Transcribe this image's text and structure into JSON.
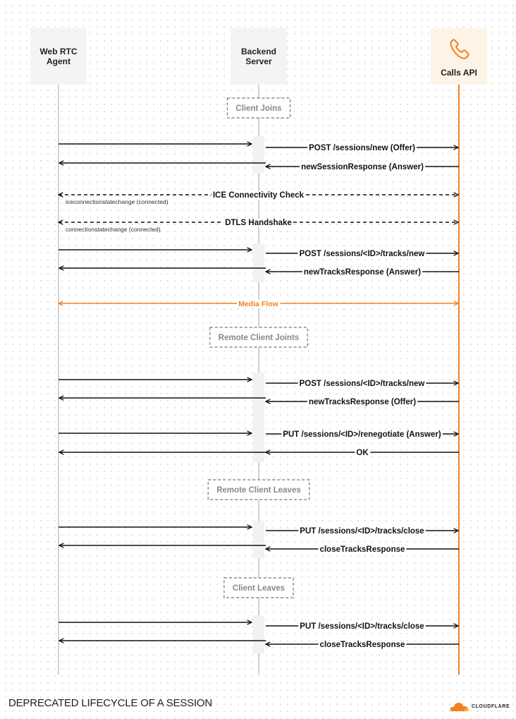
{
  "participants": [
    {
      "id": "agent",
      "label_lines": [
        "Web RTC",
        "Agent"
      ],
      "icon": null
    },
    {
      "id": "backend",
      "label_lines": [
        "Backend",
        "Server"
      ],
      "icon": null
    },
    {
      "id": "api",
      "label_lines": [
        "Calls API"
      ],
      "icon": "phone-icon"
    }
  ],
  "colors": {
    "accent": "#f38020",
    "lifeline": "#c4c4c4",
    "header_bg": "#f4f4f5",
    "api_header_bg": "#fdf3e6",
    "arrow": "#111111",
    "section_border": "#777777"
  },
  "sections": [
    "Client Joins",
    "Remote Client Joints",
    "Remote Client Leaves",
    "Client Leaves"
  ],
  "messages": [
    {
      "from": "agent",
      "to": "backend",
      "label": ""
    },
    {
      "from": "backend",
      "to": "api",
      "label": "POST /sessions/new (Offer)"
    },
    {
      "from": "backend",
      "to": "agent",
      "label": ""
    },
    {
      "from": "api",
      "to": "backend",
      "label": "newSessionResponse (Answer)"
    },
    {
      "from": "agent",
      "to": "api",
      "label": "ICE Connectivity Check",
      "style": "dashed",
      "bidirectional": true,
      "note": "iceconnectionstatechange (connected)"
    },
    {
      "from": "agent",
      "to": "api",
      "label": "DTLS Handshake",
      "style": "dashed",
      "bidirectional": true,
      "note": "connectionstatechange (connected)"
    },
    {
      "from": "agent",
      "to": "backend",
      "label": ""
    },
    {
      "from": "backend",
      "to": "api",
      "label": "POST /sessions/<ID>/tracks/new"
    },
    {
      "from": "backend",
      "to": "agent",
      "label": ""
    },
    {
      "from": "api",
      "to": "backend",
      "label": "newTracksResponse (Answer)"
    },
    {
      "from": "agent",
      "to": "api",
      "label": "Media Flow",
      "style": "accent",
      "bidirectional": true
    },
    {
      "from": "agent",
      "to": "backend",
      "label": ""
    },
    {
      "from": "backend",
      "to": "api",
      "label": "POST /sessions/<ID>/tracks/new"
    },
    {
      "from": "backend",
      "to": "agent",
      "label": ""
    },
    {
      "from": "api",
      "to": "backend",
      "label": "newTracksResponse (Offer)"
    },
    {
      "from": "agent",
      "to": "backend",
      "label": ""
    },
    {
      "from": "backend",
      "to": "api",
      "label": "PUT /sessions/<ID>/renegotiate (Answer)"
    },
    {
      "from": "backend",
      "to": "agent",
      "label": ""
    },
    {
      "from": "api",
      "to": "backend",
      "label": "OK"
    },
    {
      "from": "agent",
      "to": "backend",
      "label": ""
    },
    {
      "from": "backend",
      "to": "api",
      "label": "PUT /sessions/<ID>/tracks/close"
    },
    {
      "from": "backend",
      "to": "agent",
      "label": ""
    },
    {
      "from": "api",
      "to": "backend",
      "label": "closeTracksResponse"
    },
    {
      "from": "agent",
      "to": "backend",
      "label": ""
    },
    {
      "from": "backend",
      "to": "api",
      "label": "PUT /sessions/<ID>/tracks/close"
    },
    {
      "from": "backend",
      "to": "agent",
      "label": ""
    },
    {
      "from": "api",
      "to": "backend",
      "label": "closeTracksResponse"
    }
  ],
  "footer": {
    "title": "DEPRECATED LIFECYCLE OF A SESSION",
    "logo_text": "CLOUDFLARE"
  }
}
